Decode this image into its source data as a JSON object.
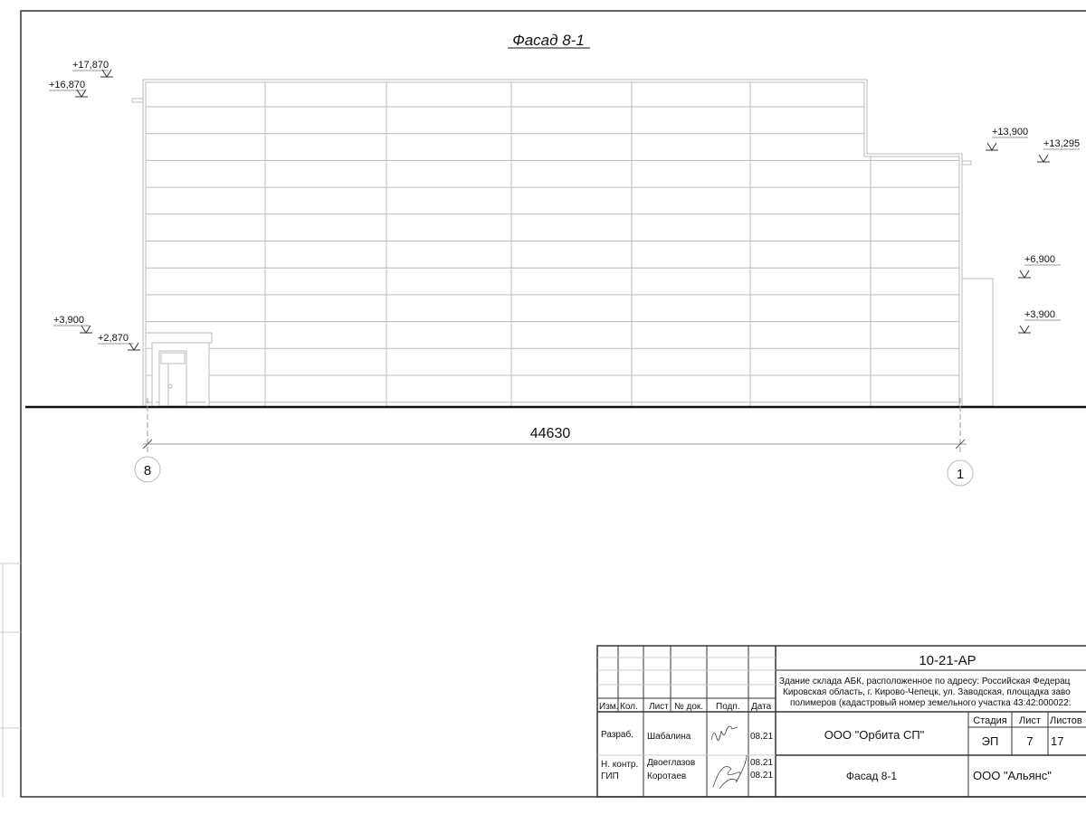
{
  "drawing": {
    "title": "Фасад 8-1",
    "overall_dimension": "44630",
    "axes": [
      "8",
      "1"
    ],
    "levels_left": [
      "+17,870",
      "+16,870",
      "+3,900",
      "+2,870"
    ],
    "levels_right": [
      "+13,900",
      "+13,295",
      "+6,900",
      "+3,900"
    ]
  },
  "title_block": {
    "code": "10-21-АР",
    "address_lines": [
      "Здание склада АБК, расположенное по адресу: Российская Федерац",
      "Кировская область, г. Кирово-Чепецк, ул. Заводская, площадка заво",
      "полимеров (кадастровый номер земельного участка 43:42:000022:"
    ],
    "headers": [
      "Изм.",
      "Кол.",
      "Лист",
      "№ док.",
      "Подп.",
      "Дата"
    ],
    "people": [
      {
        "role": "Разраб.",
        "name": "Шабалина",
        "date": "08.21"
      },
      {
        "role": "Н. контр.",
        "name": "Двоеглазов",
        "date": "08.21"
      },
      {
        "role": "ГИП",
        "name": "Коротаев",
        "date": "08.21"
      }
    ],
    "organization": "ООО \"Орбита СП\"",
    "sheet_name": "Фасад 8-1",
    "company": "ООО \"Альянс\"",
    "stage_label": "Стадия",
    "sheet_label": "Лист",
    "sheets_label": "Листов",
    "stage": "ЭП",
    "sheet": "7",
    "sheets": "17"
  }
}
